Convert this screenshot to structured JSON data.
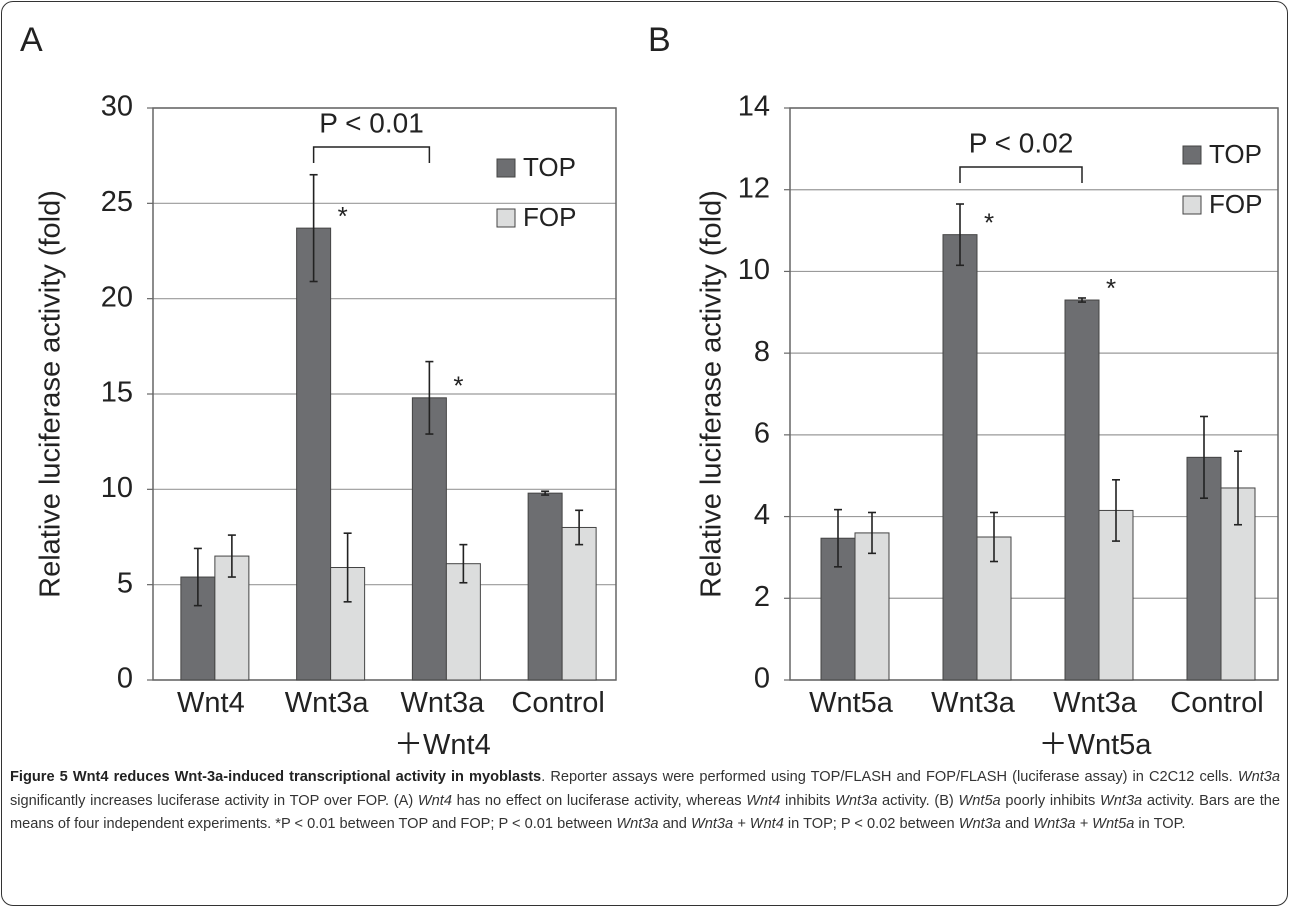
{
  "chart_data": [
    {
      "type": "bar",
      "panel": "A",
      "ylabel": "Relative luciferase activity (fold)",
      "categories": [
        "Wnt4",
        "Wnt3a",
        "Wnt3a\n＋Wnt4",
        "Control"
      ],
      "series": [
        {
          "name": "TOP",
          "color": "#6d6e71",
          "values": [
            5.4,
            23.7,
            14.8,
            9.8
          ],
          "errors": [
            1.5,
            2.8,
            1.9,
            0.1
          ]
        },
        {
          "name": "FOP",
          "color": "#dcdddd",
          "values": [
            6.5,
            5.9,
            6.1,
            8.0
          ],
          "errors": [
            1.1,
            1.8,
            1.0,
            0.9
          ]
        }
      ],
      "ylim": [
        0,
        30
      ],
      "yticks": [
        0,
        5,
        10,
        15,
        20,
        25,
        30
      ],
      "grid": true,
      "legend": "upper right",
      "annotations": [
        {
          "text": "*",
          "series": 0,
          "category": 1
        },
        {
          "text": "*",
          "series": 0,
          "category": 2
        }
      ],
      "bracket": {
        "text": "P < 0.01",
        "from": 1,
        "to": 2
      }
    },
    {
      "type": "bar",
      "panel": "B",
      "ylabel": "Relative luciferase activity (fold)",
      "categories": [
        "Wnt5a",
        "Wnt3a",
        "Wnt3a\n＋Wnt5a",
        "Control"
      ],
      "series": [
        {
          "name": "TOP",
          "color": "#6d6e71",
          "values": [
            3.47,
            10.9,
            9.3,
            5.45
          ],
          "errors": [
            0.7,
            0.75,
            0.05,
            1.0
          ]
        },
        {
          "name": "FOP",
          "color": "#dcdddd",
          "values": [
            3.6,
            3.5,
            4.15,
            4.7
          ],
          "errors": [
            0.5,
            0.6,
            0.75,
            0.9
          ]
        }
      ],
      "ylim": [
        0,
        14
      ],
      "yticks": [
        0,
        2,
        4,
        6,
        8,
        10,
        12,
        14
      ],
      "grid": true,
      "legend": "upper right",
      "annotations": [
        {
          "text": "*",
          "series": 0,
          "category": 1
        },
        {
          "text": "*",
          "series": 0,
          "category": 2
        }
      ],
      "bracket": {
        "text": "P < 0.02",
        "from": 1,
        "to": 2
      }
    }
  ],
  "caption": {
    "title": "Figure 5 Wnt4 reduces Wnt-3a-induced transcriptional activity in myoblasts",
    "segments": [
      {
        "text": ". Reporter assays were performed using TOP/FLASH and FOP/FLASH (luciferase assay) in C2C12 cells. "
      },
      {
        "text": "Wnt3a",
        "italic": true
      },
      {
        "text": " significantly increases luciferase activity in TOP over FOP. (A) "
      },
      {
        "text": "Wnt4",
        "italic": true
      },
      {
        "text": " has no effect on luciferase activity, whereas "
      },
      {
        "text": "Wnt4",
        "italic": true
      },
      {
        "text": " inhibits "
      },
      {
        "text": "Wnt3a",
        "italic": true
      },
      {
        "text": " activity. (B) "
      },
      {
        "text": "Wnt5a",
        "italic": true
      },
      {
        "text": " poorly inhibits "
      },
      {
        "text": "Wnt3a",
        "italic": true
      },
      {
        "text": " activity. Bars are the means of four independent experiments. *P < 0.01 between TOP and FOP; P < 0.01 between "
      },
      {
        "text": "Wnt3a",
        "italic": true
      },
      {
        "text": " and "
      },
      {
        "text": "Wnt3a + Wnt4",
        "italic": true
      },
      {
        "text": " in TOP; P < 0.02 between "
      },
      {
        "text": "Wnt3a",
        "italic": true
      },
      {
        "text": " and "
      },
      {
        "text": "Wnt3a + Wnt5a",
        "italic": true
      },
      {
        "text": " in TOP."
      }
    ]
  }
}
